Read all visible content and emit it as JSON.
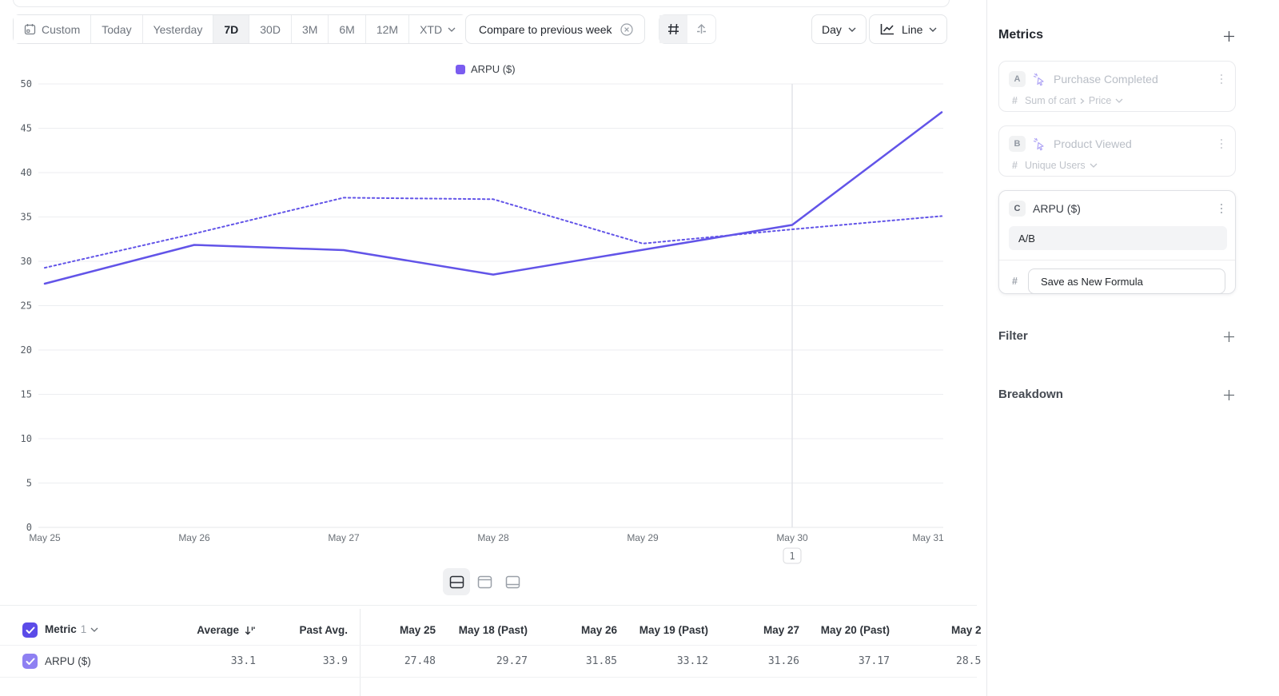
{
  "toolbar": {
    "date_ranges": [
      "Custom",
      "Today",
      "Yesterday",
      "7D",
      "30D",
      "3M",
      "6M",
      "12M",
      "XTD"
    ],
    "selected_range": "7D",
    "compare_label": "Compare to previous week",
    "interval_label": "Day",
    "chart_type_label": "Line"
  },
  "chart_data": {
    "type": "line",
    "legend": [
      "ARPU ($)"
    ],
    "x_labels": [
      "May 25",
      "May 26",
      "May 27",
      "May 28",
      "May 29",
      "May 30",
      "May 31"
    ],
    "y_ticks": [
      0,
      5,
      10,
      15,
      20,
      25,
      30,
      35,
      40,
      45,
      50
    ],
    "ylim": [
      0,
      50
    ],
    "grid": true,
    "legend_position": "top-center",
    "series": [
      {
        "name": "ARPU ($)",
        "style": "solid",
        "color": "#6254e8",
        "values": [
          27.48,
          31.85,
          31.26,
          28.5,
          31.3,
          34.1,
          46.8
        ]
      },
      {
        "name": "ARPU ($) previous week",
        "style": "dotted",
        "color": "#6254e8",
        "values": [
          29.27,
          33.12,
          37.17,
          37.0,
          32.0,
          33.6,
          35.1
        ]
      }
    ],
    "annotation": {
      "label": "1",
      "x_label": "May 30"
    }
  },
  "colors": {
    "accent": "#6254e8",
    "legend_swatch": "#7a5cf0",
    "checkbox_header": "#5b4be8",
    "checkbox_row": "#8e80f2"
  },
  "panel": {
    "metrics_title": "Metrics",
    "cards": [
      {
        "letter": "A",
        "title": "Purchase Completed",
        "measure_type": "#",
        "measure": "Sum of cart",
        "measure_property": "Price",
        "disabled": true
      },
      {
        "letter": "B",
        "title": "Product Viewed",
        "measure_type": "#",
        "measure": "Unique Users",
        "disabled": true
      },
      {
        "letter": "C",
        "title": "ARPU ($)",
        "measure_type": "#",
        "formula_value": "A/B",
        "save_button_label": "Save as New Formula",
        "disabled": false
      }
    ],
    "filter_title": "Filter",
    "breakdown_title": "Breakdown"
  },
  "table": {
    "metric_label": "Metric",
    "metric_count": "1",
    "columns": [
      "Average",
      "Past Avg.",
      "May 25",
      "May 18 (Past)",
      "May 26",
      "May 19 (Past)",
      "May 27",
      "May 20 (Past)",
      "May 2"
    ],
    "rows": [
      {
        "label": "ARPU ($)",
        "values": [
          "33.1",
          "33.9",
          "27.48",
          "29.27",
          "31.85",
          "33.12",
          "31.26",
          "37.17",
          "28.5"
        ]
      }
    ]
  }
}
